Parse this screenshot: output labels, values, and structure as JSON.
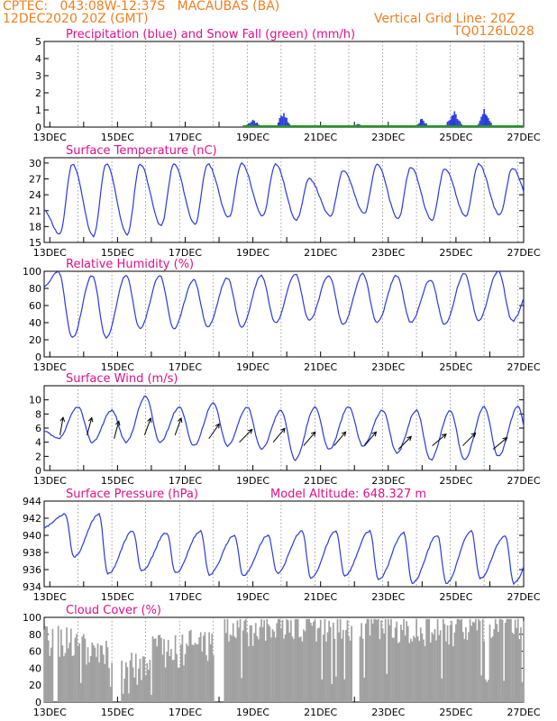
{
  "header": {
    "line1_left": "CPTEC:   043:08W-12:37S   MACAUBAS (BA)",
    "line2_left": "12DEC2020 20Z (GMT)",
    "line2_right": "Vertical Grid Line: 20Z",
    "line3_right": "TQ0126L028"
  },
  "colors": {
    "header": "#f07f20",
    "title": "#e0108a",
    "line": "#2a3ae0",
    "snow": "#18a018",
    "cloud": "#a0a0a0",
    "grid": "#777777",
    "arrow": "#000000"
  },
  "x_tick_labels": [
    "13DEC",
    "15DEC",
    "17DEC",
    "19DEC",
    "21DEC",
    "23DEC",
    "25DEC",
    "27DEC"
  ],
  "chart_data": [
    {
      "type": "bar",
      "title": "Precipitation (blue) and Snow Fall (green) (mm/h)",
      "ylim": [
        0,
        5
      ],
      "yticks": [
        0,
        1,
        2,
        3,
        4,
        5
      ],
      "x_start_day": 12.833,
      "x_end_day": 27.0,
      "step_hours": 1,
      "series": [
        {
          "name": "Precipitation",
          "color": "#2a3ae0",
          "events": [
            {
              "day": 19.0,
              "peak": 0.55,
              "width_h": 10
            },
            {
              "day": 19.9,
              "peak": 1.1,
              "width_h": 9
            },
            {
              "day": 21.0,
              "peak": 0.12,
              "width_h": 6
            },
            {
              "day": 22.1,
              "peak": 0.25,
              "width_h": 7
            },
            {
              "day": 23.2,
              "peak": 0.1,
              "width_h": 5
            },
            {
              "day": 24.0,
              "peak": 0.65,
              "width_h": 7
            },
            {
              "day": 24.95,
              "peak": 1.05,
              "width_h": 12
            },
            {
              "day": 25.85,
              "peak": 1.15,
              "width_h": 10
            }
          ]
        },
        {
          "name": "Snow Fall",
          "color": "#18a018",
          "values_note": ""
        }
      ]
    },
    {
      "type": "line",
      "title": "Surface Temperature (nC)",
      "ylim": [
        15,
        31
      ],
      "yticks": [
        15,
        18,
        21,
        24,
        27,
        30
      ],
      "daily_min": [
        16.5,
        16.2,
        16.5,
        18.2,
        18.5,
        19.8,
        20.0,
        19.3,
        20.0,
        20.5,
        19.5,
        19.2,
        20.0,
        20.2,
        21.0
      ],
      "daily_max": [
        29.8,
        29.8,
        29.8,
        29.8,
        29.8,
        29.9,
        29.8,
        27.0,
        28.6,
        29.8,
        29.2,
        29.0,
        29.8,
        29.0,
        28.0
      ],
      "start_value": 21.0,
      "series": [
        {
          "name": "",
          "color": "#2a3ae0"
        }
      ]
    },
    {
      "type": "line",
      "title": "Relative Humidity (%)",
      "ylim": [
        0,
        100
      ],
      "yticks": [
        0,
        20,
        40,
        60,
        80,
        100
      ],
      "daily_min": [
        22,
        22,
        33,
        33,
        35,
        35,
        40,
        43,
        38,
        40,
        40,
        38,
        43,
        42,
        42
      ],
      "daily_max": [
        100,
        95,
        95,
        95,
        90,
        92,
        95,
        97,
        95,
        97,
        95,
        90,
        97,
        100,
        85
      ],
      "start_value": 82,
      "series": [
        {
          "name": "",
          "color": "#2a3ae0"
        }
      ]
    },
    {
      "type": "line",
      "title": "Surface Wind (m/s)",
      "ylim": [
        0,
        12
      ],
      "yticks": [
        0,
        2,
        4,
        6,
        8,
        10
      ],
      "daily_min": [
        4.5,
        4.0,
        4.0,
        4.0,
        3.5,
        3.5,
        3.0,
        1.5,
        3.0,
        3.5,
        2.5,
        1.5,
        1.5,
        2.0,
        1.0
      ],
      "daily_max": [
        9.0,
        8.5,
        10.5,
        9.0,
        9.5,
        9.0,
        8.5,
        9.0,
        9.0,
        8.5,
        8.5,
        8.5,
        9.0,
        9.0,
        8.5
      ],
      "start_value": 5.5,
      "series": [
        {
          "name": "",
          "color": "#2a3ae0"
        }
      ],
      "wind_arrows": [
        {
          "day": 13.3,
          "speed": 5.0,
          "dir_deg": 190
        },
        {
          "day": 14.1,
          "speed": 5.0,
          "dir_deg": 195
        },
        {
          "day": 14.9,
          "speed": 4.5,
          "dir_deg": 195
        },
        {
          "day": 15.8,
          "speed": 5.0,
          "dir_deg": 200
        },
        {
          "day": 16.7,
          "speed": 5.0,
          "dir_deg": 200
        },
        {
          "day": 17.7,
          "speed": 4.5,
          "dir_deg": 215
        },
        {
          "day": 18.6,
          "speed": 4.0,
          "dir_deg": 225
        },
        {
          "day": 19.6,
          "speed": 4.0,
          "dir_deg": 220
        },
        {
          "day": 20.5,
          "speed": 3.5,
          "dir_deg": 220
        },
        {
          "day": 21.4,
          "speed": 3.5,
          "dir_deg": 220
        },
        {
          "day": 22.3,
          "speed": 3.5,
          "dir_deg": 220
        },
        {
          "day": 23.3,
          "speed": 3.0,
          "dir_deg": 225
        },
        {
          "day": 24.3,
          "speed": 3.5,
          "dir_deg": 230
        },
        {
          "day": 25.2,
          "speed": 3.5,
          "dir_deg": 225
        },
        {
          "day": 26.1,
          "speed": 3.0,
          "dir_deg": 230
        }
      ]
    },
    {
      "type": "line",
      "title": "Surface Pressure (hPa)",
      "subtitle": "Model Altitude: 648.327  m",
      "ylim": [
        934,
        944
      ],
      "yticks": [
        934,
        936,
        938,
        940,
        942,
        944
      ],
      "daily_min": [
        937.5,
        935.5,
        935.8,
        935.6,
        935.4,
        935.3,
        935.6,
        935.0,
        935.3,
        934.8,
        934.4,
        934.4,
        935.0,
        934.4,
        934.6
      ],
      "daily_max": [
        942.5,
        942.5,
        940.5,
        940.3,
        940.5,
        940.0,
        940.0,
        940.5,
        940.5,
        940.5,
        940.3,
        940.0,
        940.5,
        940.0,
        940.5
      ],
      "start_value": 941.0,
      "series": [
        {
          "name": "",
          "color": "#2a3ae0"
        }
      ]
    },
    {
      "type": "bar",
      "title": "Cloud Cover (%)",
      "ylim": [
        0,
        100
      ],
      "yticks": [
        0,
        20,
        40,
        60,
        80,
        100
      ],
      "daily_mean": [
        72,
        55,
        40,
        60,
        68,
        85,
        92,
        88,
        90,
        92,
        88,
        85,
        90,
        92,
        90
      ],
      "clear_days": [
        13.15,
        14.9,
        15.05,
        17.9,
        18.0,
        18.1,
        22.0,
        22.1
      ],
      "series": [
        {
          "name": "",
          "color": "#a0a0a0"
        }
      ]
    }
  ]
}
